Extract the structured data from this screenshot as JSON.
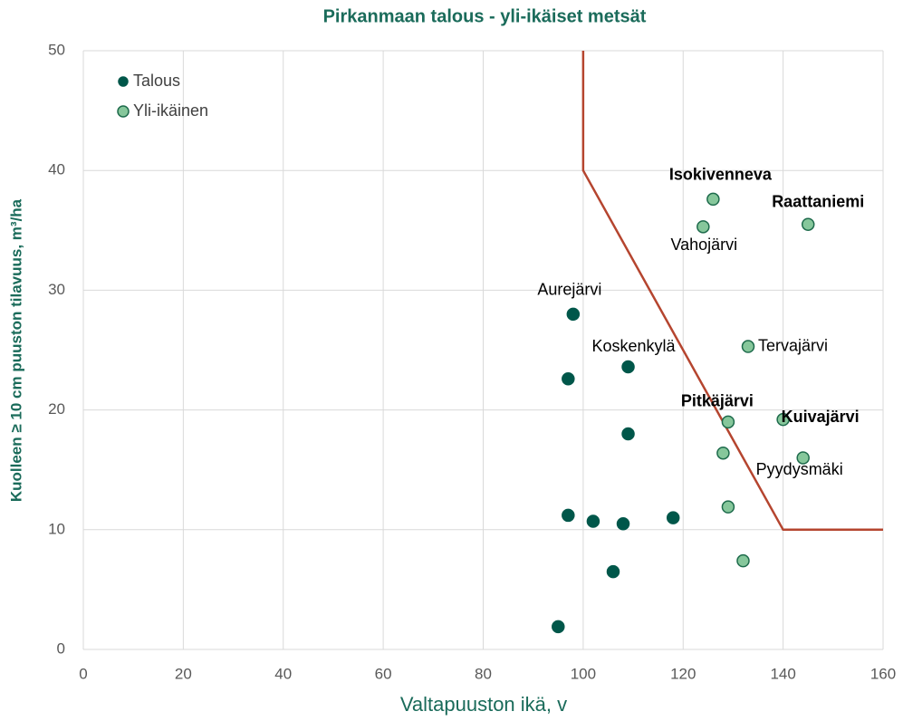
{
  "chart_data": {
    "type": "scatter",
    "title": "Pirkanmaan talous - yli-ikäiset metsät",
    "x_label": "Valtapuuston ikä, v",
    "y_label": "Kuolleen ≥ 10 cm puuston tilavuus, m³/ha",
    "xlim": [
      0,
      160
    ],
    "xticks": [
      0,
      20,
      40,
      60,
      80,
      100,
      120,
      140,
      160
    ],
    "ylim": [
      0,
      50
    ],
    "yticks": [
      0,
      10,
      20,
      30,
      40,
      50
    ],
    "grid": true,
    "legend": "upper left",
    "series": [
      {
        "name": "Talous",
        "color": "#00574a",
        "edge": "#00574a",
        "x": [
          98,
          97,
          109,
          109,
          97,
          102,
          108,
          118,
          106,
          95
        ],
        "values": [
          28,
          22.6,
          23.6,
          18,
          11.2,
          10.7,
          10.5,
          11,
          6.5,
          1.9
        ],
        "labels": [
          "Aurejärvi",
          null,
          "Koskenkylä",
          null,
          null,
          null,
          null,
          null,
          null,
          null
        ],
        "bold": [
          false,
          false,
          false,
          false,
          false,
          false,
          false,
          false,
          false,
          false
        ]
      },
      {
        "name": "Yli-ikäinen",
        "color": "#86c79b",
        "edge": "#1e6b4c",
        "x": [
          126,
          124,
          145,
          133,
          129,
          140,
          128,
          144,
          129,
          132
        ],
        "values": [
          37.6,
          35.3,
          35.5,
          25.3,
          19,
          19.2,
          16.4,
          16,
          11.9,
          7.4
        ],
        "labels": [
          "Isokivenneva",
          "Vahojärvi",
          "Raattaniemi",
          "Tervajärvi",
          "Pitkäjärvi",
          "Kuivajärvi",
          null,
          "Pyydysmäki",
          null,
          null
        ],
        "bold": [
          true,
          false,
          true,
          false,
          true,
          true,
          false,
          false,
          false,
          false
        ]
      }
    ],
    "threshold_line": {
      "color": "#b5452f",
      "x": [
        100,
        100,
        140,
        160
      ],
      "values": [
        50,
        40,
        10,
        10
      ]
    }
  }
}
